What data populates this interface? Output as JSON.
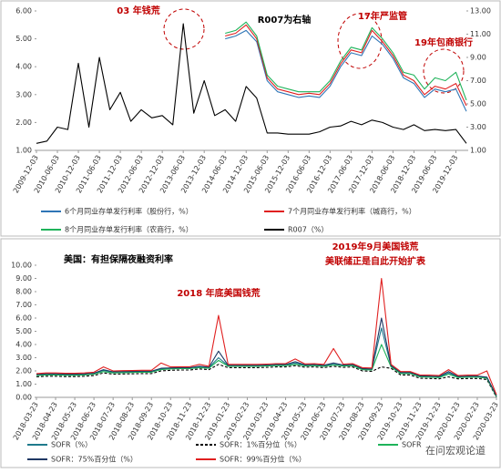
{
  "chart_data": [
    {
      "type": "line",
      "annotations": [
        {
          "text": "03 年钱荒",
          "color": "#c00000"
        },
        {
          "text": "R007为右轴",
          "color": "#000000"
        },
        {
          "text": "17年严监管",
          "color": "#c00000"
        },
        {
          "text": "19年包商银行",
          "color": "#c00000"
        }
      ],
      "categories": [
        "2009-12-03",
        null,
        "2010-06-03",
        null,
        "2010-12-03",
        null,
        "2011-06-03",
        null,
        "2011-12-03",
        null,
        "2012-06-03",
        null,
        "2012-12-03",
        null,
        "2013-06-03",
        null,
        "2013-12-03",
        null,
        "2014-06-03",
        null,
        "2014-12-03",
        null,
        "2015-06-03",
        null,
        "2015-12-03",
        null,
        "2016-06-03",
        null,
        "2016-12-03",
        null,
        "2017-06-03",
        null,
        "2017-12-03",
        null,
        "2018-06-03",
        null,
        "2018-12-03",
        null,
        "2019-06-03",
        null,
        "2019-12-03",
        null
      ],
      "series": [
        {
          "name": "6个月同业存单发行利率（股份行，%）",
          "color": "#2e75b6",
          "values": [
            null,
            null,
            null,
            null,
            null,
            null,
            null,
            null,
            null,
            null,
            null,
            null,
            null,
            null,
            null,
            null,
            null,
            null,
            5.0,
            5.1,
            5.3,
            4.9,
            3.5,
            3.1,
            3.0,
            2.9,
            2.95,
            2.9,
            3.3,
            4.0,
            4.5,
            4.4,
            5.1,
            4.8,
            4.3,
            3.6,
            3.4,
            2.9,
            3.2,
            3.1,
            3.2,
            2.4
          ]
        },
        {
          "name": "7个月同业存单发行利率（城商行，%）",
          "color": "#e02020",
          "values": [
            null,
            null,
            null,
            null,
            null,
            null,
            null,
            null,
            null,
            null,
            null,
            null,
            null,
            null,
            null,
            null,
            null,
            null,
            5.1,
            5.2,
            5.5,
            5.0,
            3.6,
            3.2,
            3.1,
            3.0,
            3.05,
            3.0,
            3.4,
            4.1,
            4.6,
            4.5,
            5.3,
            4.9,
            4.4,
            3.7,
            3.5,
            3.0,
            3.3,
            3.2,
            3.4,
            2.6
          ]
        },
        {
          "name": "8个月同业存单发行利率（农商行，%）",
          "color": "#1fb35a",
          "values": [
            null,
            null,
            null,
            null,
            null,
            null,
            null,
            null,
            null,
            null,
            null,
            null,
            null,
            null,
            null,
            null,
            null,
            null,
            5.2,
            5.3,
            5.6,
            5.1,
            3.7,
            3.3,
            3.2,
            3.1,
            3.1,
            3.1,
            3.5,
            4.2,
            4.7,
            4.6,
            5.4,
            5.0,
            4.5,
            3.8,
            3.7,
            3.2,
            3.6,
            3.5,
            3.8,
            2.8
          ]
        },
        {
          "name": "R007（%）",
          "color": "#000000",
          "axis": "y2",
          "values": [
            1.6,
            1.8,
            3.0,
            2.8,
            8.5,
            3.0,
            9.0,
            4.5,
            6.0,
            3.5,
            4.5,
            3.8,
            4.0,
            3.2,
            11.9,
            4.2,
            7.0,
            4.0,
            4.5,
            3.5,
            6.5,
            5.5,
            2.5,
            2.5,
            2.4,
            2.4,
            2.4,
            2.6,
            3.0,
            3.1,
            3.5,
            3.2,
            3.6,
            3.4,
            3.0,
            2.8,
            3.2,
            2.7,
            2.8,
            2.7,
            2.8,
            1.6
          ]
        }
      ],
      "ylim": [
        1,
        6
      ],
      "yticks": [
        {
          "value": 1,
          "label": "1.00"
        },
        {
          "value": 2,
          "label": "2.00"
        },
        {
          "value": 3,
          "label": "3.00"
        },
        {
          "value": 4,
          "label": "4.00"
        },
        {
          "value": 5,
          "label": "5.00"
        },
        {
          "value": 6,
          "label": "6.00"
        }
      ],
      "y2lim": [
        1,
        13
      ],
      "y2ticks": [
        {
          "value": 1,
          "label": "1.00"
        },
        {
          "value": 3,
          "label": "3.00"
        },
        {
          "value": 5,
          "label": "5.00"
        },
        {
          "value": 7,
          "label": "7.00"
        },
        {
          "value": 9,
          "label": "9.00"
        },
        {
          "value": 11,
          "label": "11.00"
        },
        {
          "value": 13,
          "label": "13.00"
        }
      ],
      "grid": false
    },
    {
      "type": "line",
      "title": "美国：有担保隔夜融资利率",
      "annotations": [
        {
          "text": "2018 年底美国钱荒",
          "color": "#c00000"
        },
        {
          "text": "2019年9月美国钱荒",
          "color": "#c00000"
        },
        {
          "text": "美联储正是自此开始扩表",
          "color": "#c00000"
        }
      ],
      "watermark": "在问宏观论道",
      "categories": [
        "2018-03-23",
        null,
        "2018-04-23",
        null,
        "2018-05-23",
        null,
        "2018-06-23",
        null,
        "2018-07-23",
        null,
        "2018-08-23",
        null,
        "2018-09-23",
        null,
        "2018-10-23",
        null,
        "2018-11-23",
        null,
        "2018-12-23",
        null,
        "2019-01-23",
        null,
        "2019-02-23",
        null,
        "2019-03-23",
        null,
        "2019-04-23",
        null,
        "2019-05-23",
        null,
        "2019-06-23",
        null,
        "2019-07-23",
        null,
        "2019-08-23",
        null,
        "2019-09-23",
        null,
        "2019-10-23",
        null,
        "2019-11-23",
        null,
        "2019-12-23",
        null,
        "2020-01-23",
        null,
        "2020-02-23",
        null,
        "2020-03-23"
      ],
      "series": [
        {
          "name": "SOFR（%）",
          "color": "#1f7a8c",
          "values": [
            1.7,
            1.75,
            1.75,
            1.72,
            1.72,
            1.75,
            1.8,
            2.05,
            1.9,
            1.92,
            1.93,
            1.95,
            1.95,
            2.15,
            2.2,
            2.22,
            2.22,
            2.3,
            2.25,
            3.0,
            2.4,
            2.4,
            2.4,
            2.4,
            2.42,
            2.45,
            2.45,
            2.6,
            2.43,
            2.45,
            2.4,
            2.5,
            2.42,
            2.45,
            2.15,
            2.12,
            5.25,
            2.35,
            1.85,
            1.85,
            1.6,
            1.58,
            1.55,
            1.85,
            1.55,
            1.58,
            1.58,
            1.5,
            0.1
          ]
        },
        {
          "name": "SOFR：1%百分位（%）",
          "color": "#000000",
          "dash": true,
          "values": [
            1.55,
            1.6,
            1.6,
            1.57,
            1.57,
            1.6,
            1.65,
            1.85,
            1.75,
            1.77,
            1.78,
            1.8,
            1.8,
            2.0,
            2.05,
            2.07,
            2.07,
            2.15,
            2.1,
            2.5,
            2.25,
            2.25,
            2.25,
            2.25,
            2.27,
            2.3,
            2.3,
            2.4,
            2.28,
            2.3,
            2.25,
            2.35,
            2.27,
            2.3,
            2.0,
            1.97,
            2.3,
            2.2,
            1.7,
            1.7,
            1.45,
            1.43,
            1.4,
            1.55,
            1.4,
            1.43,
            1.43,
            1.35,
            0.01
          ]
        },
        {
          "name": "SOFR",
          "color": "#1fb35a",
          "values": [
            1.65,
            1.7,
            1.7,
            1.67,
            1.67,
            1.7,
            1.75,
            1.95,
            1.85,
            1.87,
            1.88,
            1.9,
            1.9,
            2.1,
            2.15,
            2.17,
            2.17,
            2.25,
            2.2,
            2.8,
            2.35,
            2.35,
            2.35,
            2.35,
            2.37,
            2.4,
            2.4,
            2.5,
            2.38,
            2.4,
            2.35,
            2.45,
            2.37,
            2.4,
            2.1,
            2.07,
            4.0,
            2.3,
            1.8,
            1.8,
            1.55,
            1.53,
            1.5,
            1.75,
            1.5,
            1.53,
            1.53,
            1.45,
            0.05
          ]
        },
        {
          "name": "SOFR：75%百分位（%）",
          "color": "#1f3864",
          "values": [
            1.73,
            1.78,
            1.78,
            1.75,
            1.75,
            1.78,
            1.83,
            2.1,
            1.93,
            1.95,
            1.96,
            1.98,
            1.98,
            2.2,
            2.23,
            2.25,
            2.25,
            2.35,
            2.28,
            3.5,
            2.43,
            2.43,
            2.43,
            2.43,
            2.45,
            2.48,
            2.48,
            2.7,
            2.46,
            2.48,
            2.43,
            2.6,
            2.45,
            2.48,
            2.18,
            2.15,
            6.0,
            2.4,
            1.88,
            1.88,
            1.63,
            1.61,
            1.58,
            1.95,
            1.58,
            1.61,
            1.61,
            1.53,
            0.12
          ]
        },
        {
          "name": "SOFR：99%百分位（%）",
          "color": "#e02020",
          "values": [
            1.8,
            1.85,
            1.85,
            1.82,
            1.82,
            1.85,
            1.9,
            2.3,
            2.0,
            2.02,
            2.03,
            2.05,
            2.05,
            2.6,
            2.3,
            2.32,
            2.32,
            2.5,
            2.35,
            6.2,
            2.5,
            2.5,
            2.5,
            2.5,
            2.52,
            2.55,
            2.55,
            2.9,
            2.53,
            2.55,
            2.5,
            3.7,
            2.52,
            2.55,
            2.25,
            2.22,
            9.0,
            2.5,
            1.95,
            1.95,
            1.7,
            1.68,
            1.65,
            2.1,
            1.65,
            1.68,
            1.68,
            2.0,
            0.2
          ]
        }
      ],
      "ylim": [
        0,
        10
      ],
      "yticks": [
        {
          "value": 0,
          "label": "0.00"
        },
        {
          "value": 1,
          "label": "1.00"
        },
        {
          "value": 2,
          "label": "2.00"
        },
        {
          "value": 3,
          "label": "3.00"
        },
        {
          "value": 4,
          "label": "4.00"
        },
        {
          "value": 5,
          "label": "5.00"
        },
        {
          "value": 6,
          "label": "6.00"
        },
        {
          "value": 7,
          "label": "7.00"
        },
        {
          "value": 8,
          "label": "8.00"
        },
        {
          "value": 9,
          "label": "9.00"
        },
        {
          "value": 10,
          "label": "10.00"
        }
      ],
      "grid": false
    }
  ]
}
